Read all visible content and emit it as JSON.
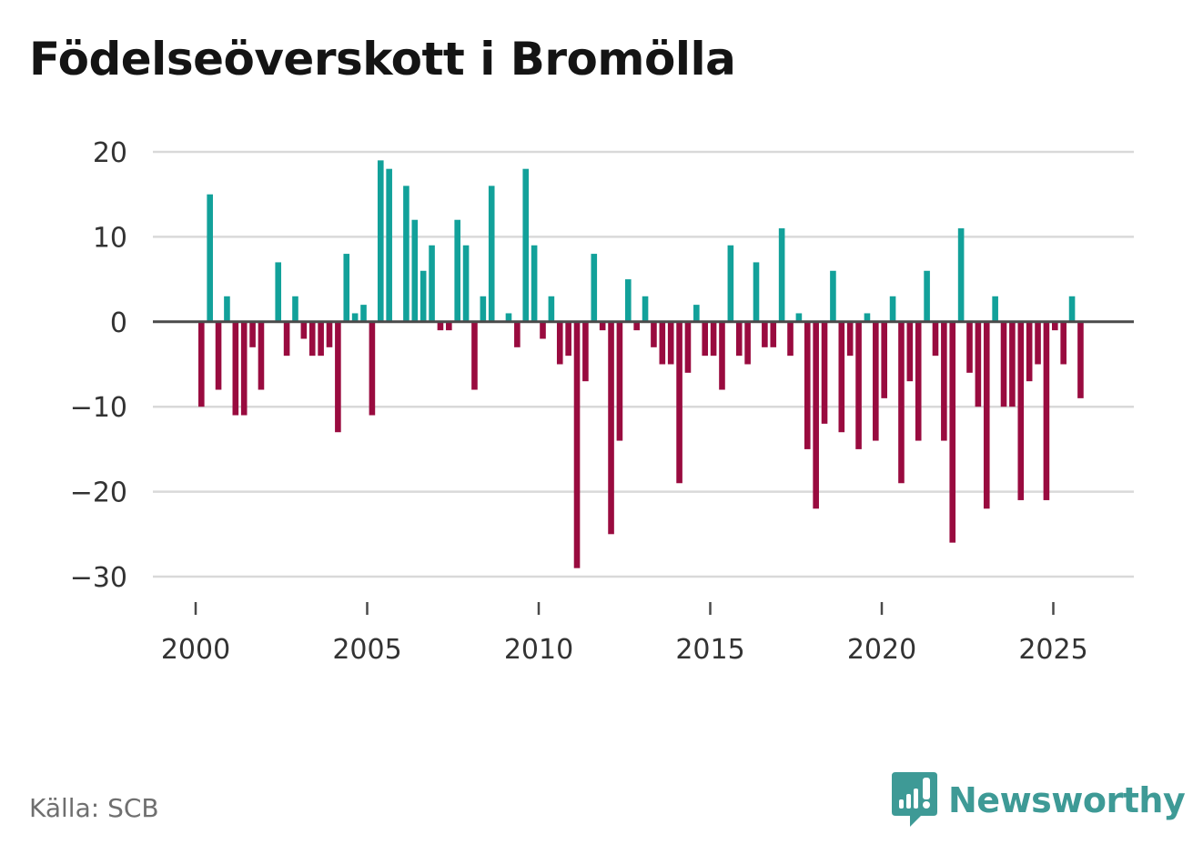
{
  "title": "Födelseöverskott i Bromölla",
  "source": "Källa: SCB",
  "brand": {
    "name": "Newsworthy",
    "logo_icon": "newsworthy-logo-icon",
    "color": "#3e9a96"
  },
  "colors": {
    "positive": "#12a19a",
    "negative": "#990b3f",
    "zero_line": "#4a4a4a",
    "grid": "#d9d9d9",
    "tick_text": "#333333"
  },
  "chart_data": {
    "type": "bar",
    "title": "Födelseöverskott i Bromölla",
    "xlabel": "",
    "ylabel": "",
    "frequency": "monthly (every other month shown as a bar)",
    "start": "2000",
    "values": [
      -10,
      15,
      -8,
      3,
      -11,
      -11,
      -3,
      -8,
      0,
      7,
      -4,
      3,
      -2,
      -4,
      -4,
      -3,
      -13,
      8,
      1,
      2,
      -11,
      19,
      18,
      0,
      16,
      12,
      6,
      9,
      -1,
      -1,
      12,
      9,
      -8,
      3,
      16,
      0,
      1,
      -3,
      18,
      9,
      -2,
      3,
      -5,
      -4,
      -29,
      -7,
      8,
      -1,
      -25,
      -14,
      5,
      -1,
      3,
      -3,
      -5,
      -5,
      -19,
      -6,
      2,
      -4,
      -4,
      -8,
      9,
      -4,
      -5,
      7,
      -3,
      -3,
      11,
      -4,
      1,
      -15,
      -22,
      -12,
      6,
      -13,
      -4,
      -15,
      1,
      -14,
      -9,
      3,
      -19,
      -7,
      -14,
      6,
      -4,
      -14,
      -26,
      11,
      -6,
      -10,
      -22,
      3,
      -10,
      -10,
      -21,
      -7,
      -5,
      -21,
      -1,
      -5,
      3,
      -9
    ],
    "ylim": [
      -33,
      22
    ],
    "yticks": [
      20,
      10,
      0,
      -10,
      -20,
      -30
    ],
    "ytick_labels": [
      "20",
      "10",
      "0",
      "−10",
      "−20",
      "−30"
    ],
    "xticks": [
      2000,
      2005,
      2010,
      2015,
      2020,
      2025
    ],
    "xtick_labels": [
      "2000",
      "2005",
      "2010",
      "2015",
      "2020",
      "2025"
    ],
    "grid": true,
    "legend": "none"
  }
}
